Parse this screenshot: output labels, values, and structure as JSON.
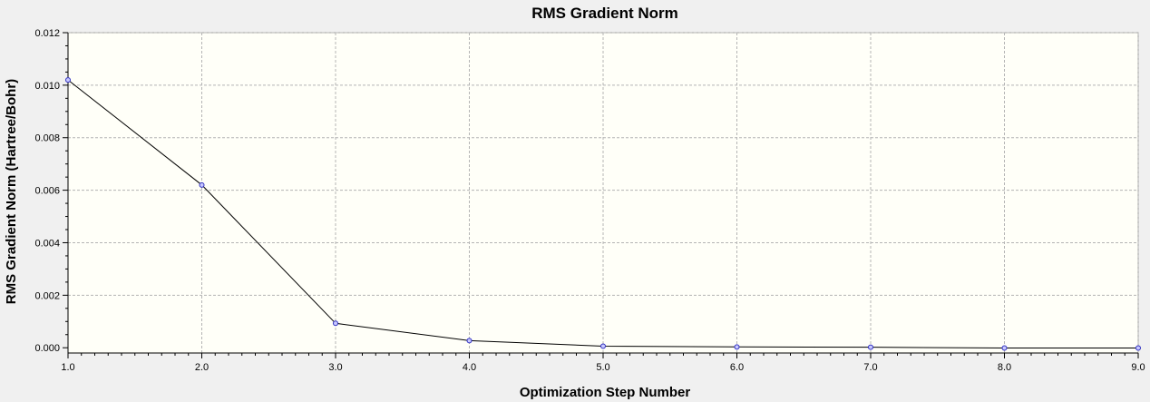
{
  "chart_data": {
    "type": "line",
    "title": "RMS Gradient Norm",
    "xlabel": "Optimization Step Number",
    "ylabel": "RMS Gradient Norm (Hartree/Bohr)",
    "xlim": [
      1.0,
      9.0
    ],
    "ylim": [
      -0.0002,
      0.012
    ],
    "x_ticks": [
      "1.0",
      "2.0",
      "3.0",
      "4.0",
      "5.0",
      "6.0",
      "7.0",
      "8.0",
      "9.0"
    ],
    "y_ticks": [
      "0.000",
      "0.002",
      "0.004",
      "0.006",
      "0.008",
      "0.010",
      "0.012"
    ],
    "grid": true,
    "colors": {
      "plot_background": "#fffff8",
      "window_background": "#f0f0f0",
      "line": "#000000",
      "marker": "#3030c0",
      "grid": "#b4b4b4"
    },
    "series": [
      {
        "x": [
          1.0,
          2.0,
          3.0,
          4.0,
          5.0,
          6.0,
          7.0,
          8.0,
          9.0
        ],
        "values": [
          0.0102,
          0.0062,
          0.00093,
          0.00027,
          6e-05,
          3e-05,
          2e-05,
          -1e-05,
          -1e-05
        ]
      }
    ]
  }
}
